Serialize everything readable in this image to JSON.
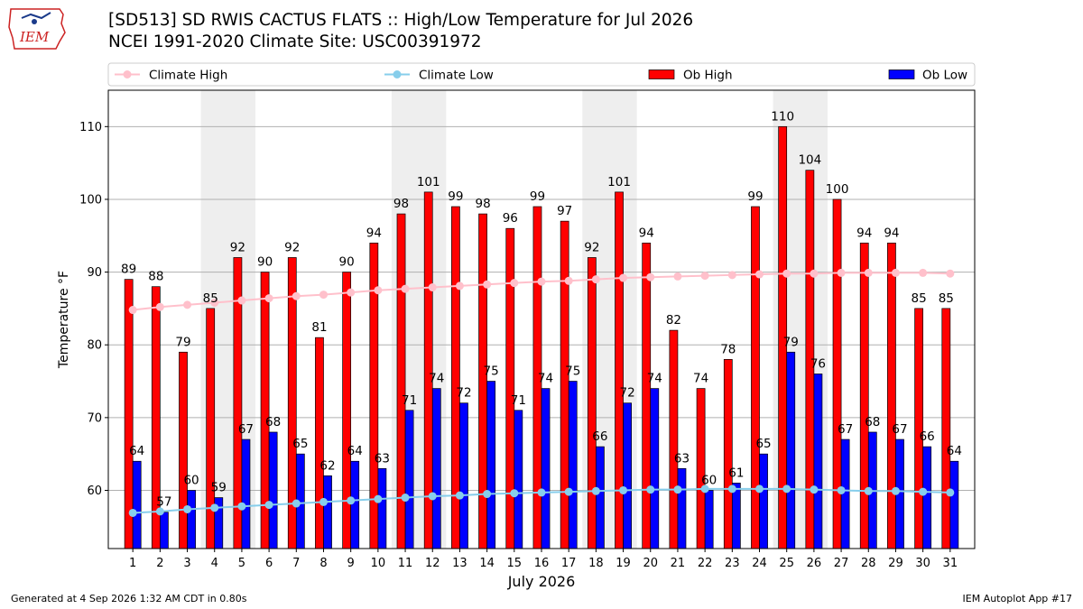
{
  "header": {
    "title_line1": "[SD513] SD RWIS CACTUS FLATS :: High/Low Temperature for Jul 2026",
    "title_line2": "NCEI 1991-2020 Climate Site: USC00391972",
    "logo_text": "IEM"
  },
  "footer": {
    "generated": "Generated at 4 Sep 2026 1:32 AM CDT in 0.80s",
    "app": "IEM Autoplot App #17"
  },
  "colors": {
    "ob_high": "#ff0000",
    "ob_low": "#0000ff",
    "climate_high": "#ffc0cb",
    "climate_low": "#87ceeb",
    "weekend_band": "#eeeeee",
    "grid": "#b0b0b0",
    "logo": "#cc2222"
  },
  "chart_data": {
    "type": "bar",
    "title": "[SD513] SD RWIS CACTUS FLATS :: High/Low Temperature for Jul 2026",
    "xlabel": "July 2026",
    "ylabel": "Temperature °F",
    "categories": [
      "1",
      "2",
      "3",
      "4",
      "5",
      "6",
      "7",
      "8",
      "9",
      "10",
      "11",
      "12",
      "13",
      "14",
      "15",
      "16",
      "17",
      "18",
      "19",
      "20",
      "21",
      "22",
      "23",
      "24",
      "25",
      "26",
      "27",
      "28",
      "29",
      "30",
      "31"
    ],
    "ylim": [
      52,
      115
    ],
    "yticks": [
      60,
      70,
      80,
      90,
      100,
      110
    ],
    "grid": true,
    "legend_position": "top",
    "legend": [
      "Climate High",
      "Climate Low",
      "Ob High",
      "Ob Low"
    ],
    "shaded_days": [
      4,
      11,
      18,
      25
    ],
    "series": [
      {
        "name": "Ob High",
        "type": "bar",
        "values": [
          89,
          88,
          79,
          85,
          92,
          90,
          92,
          81,
          90,
          94,
          98,
          101,
          99,
          98,
          96,
          99,
          97,
          92,
          101,
          94,
          82,
          74,
          78,
          99,
          110,
          104,
          100,
          94,
          94,
          85,
          85
        ],
        "labels": [
          89,
          88,
          79,
          85,
          92,
          90,
          92,
          81,
          90,
          94,
          98,
          101,
          99,
          98,
          96,
          99,
          97,
          92,
          101,
          94,
          82,
          74,
          78,
          99,
          110,
          104,
          100,
          94,
          94,
          85,
          85
        ]
      },
      {
        "name": "Ob Low",
        "type": "bar",
        "values": [
          64,
          57,
          60,
          59,
          67,
          68,
          65,
          62,
          64,
          63,
          71,
          74,
          72,
          75,
          71,
          74,
          75,
          66,
          72,
          74,
          63,
          60,
          61,
          65,
          79,
          76,
          67,
          68,
          67,
          66,
          64
        ],
        "labels": [
          64,
          57,
          60,
          59,
          67,
          68,
          65,
          62,
          64,
          63,
          71,
          74,
          72,
          75,
          71,
          74,
          75,
          66,
          72,
          74,
          63,
          60,
          61,
          65,
          79,
          76,
          67,
          68,
          67,
          66,
          64
        ]
      },
      {
        "name": "Climate High",
        "type": "line",
        "values": [
          84.8,
          85.2,
          85.5,
          85.8,
          86.1,
          86.4,
          86.7,
          86.9,
          87.2,
          87.5,
          87.7,
          87.9,
          88.1,
          88.3,
          88.5,
          88.7,
          88.8,
          89.0,
          89.2,
          89.3,
          89.4,
          89.5,
          89.6,
          89.7,
          89.8,
          89.8,
          89.9,
          89.9,
          89.9,
          89.9,
          89.8
        ]
      },
      {
        "name": "Climate Low",
        "type": "line",
        "values": [
          56.9,
          57.1,
          57.4,
          57.6,
          57.8,
          58.0,
          58.2,
          58.4,
          58.6,
          58.8,
          59.0,
          59.2,
          59.3,
          59.5,
          59.6,
          59.7,
          59.8,
          59.9,
          60.0,
          60.1,
          60.1,
          60.2,
          60.2,
          60.2,
          60.2,
          60.1,
          60.0,
          59.9,
          59.9,
          59.8,
          59.7
        ]
      }
    ]
  }
}
